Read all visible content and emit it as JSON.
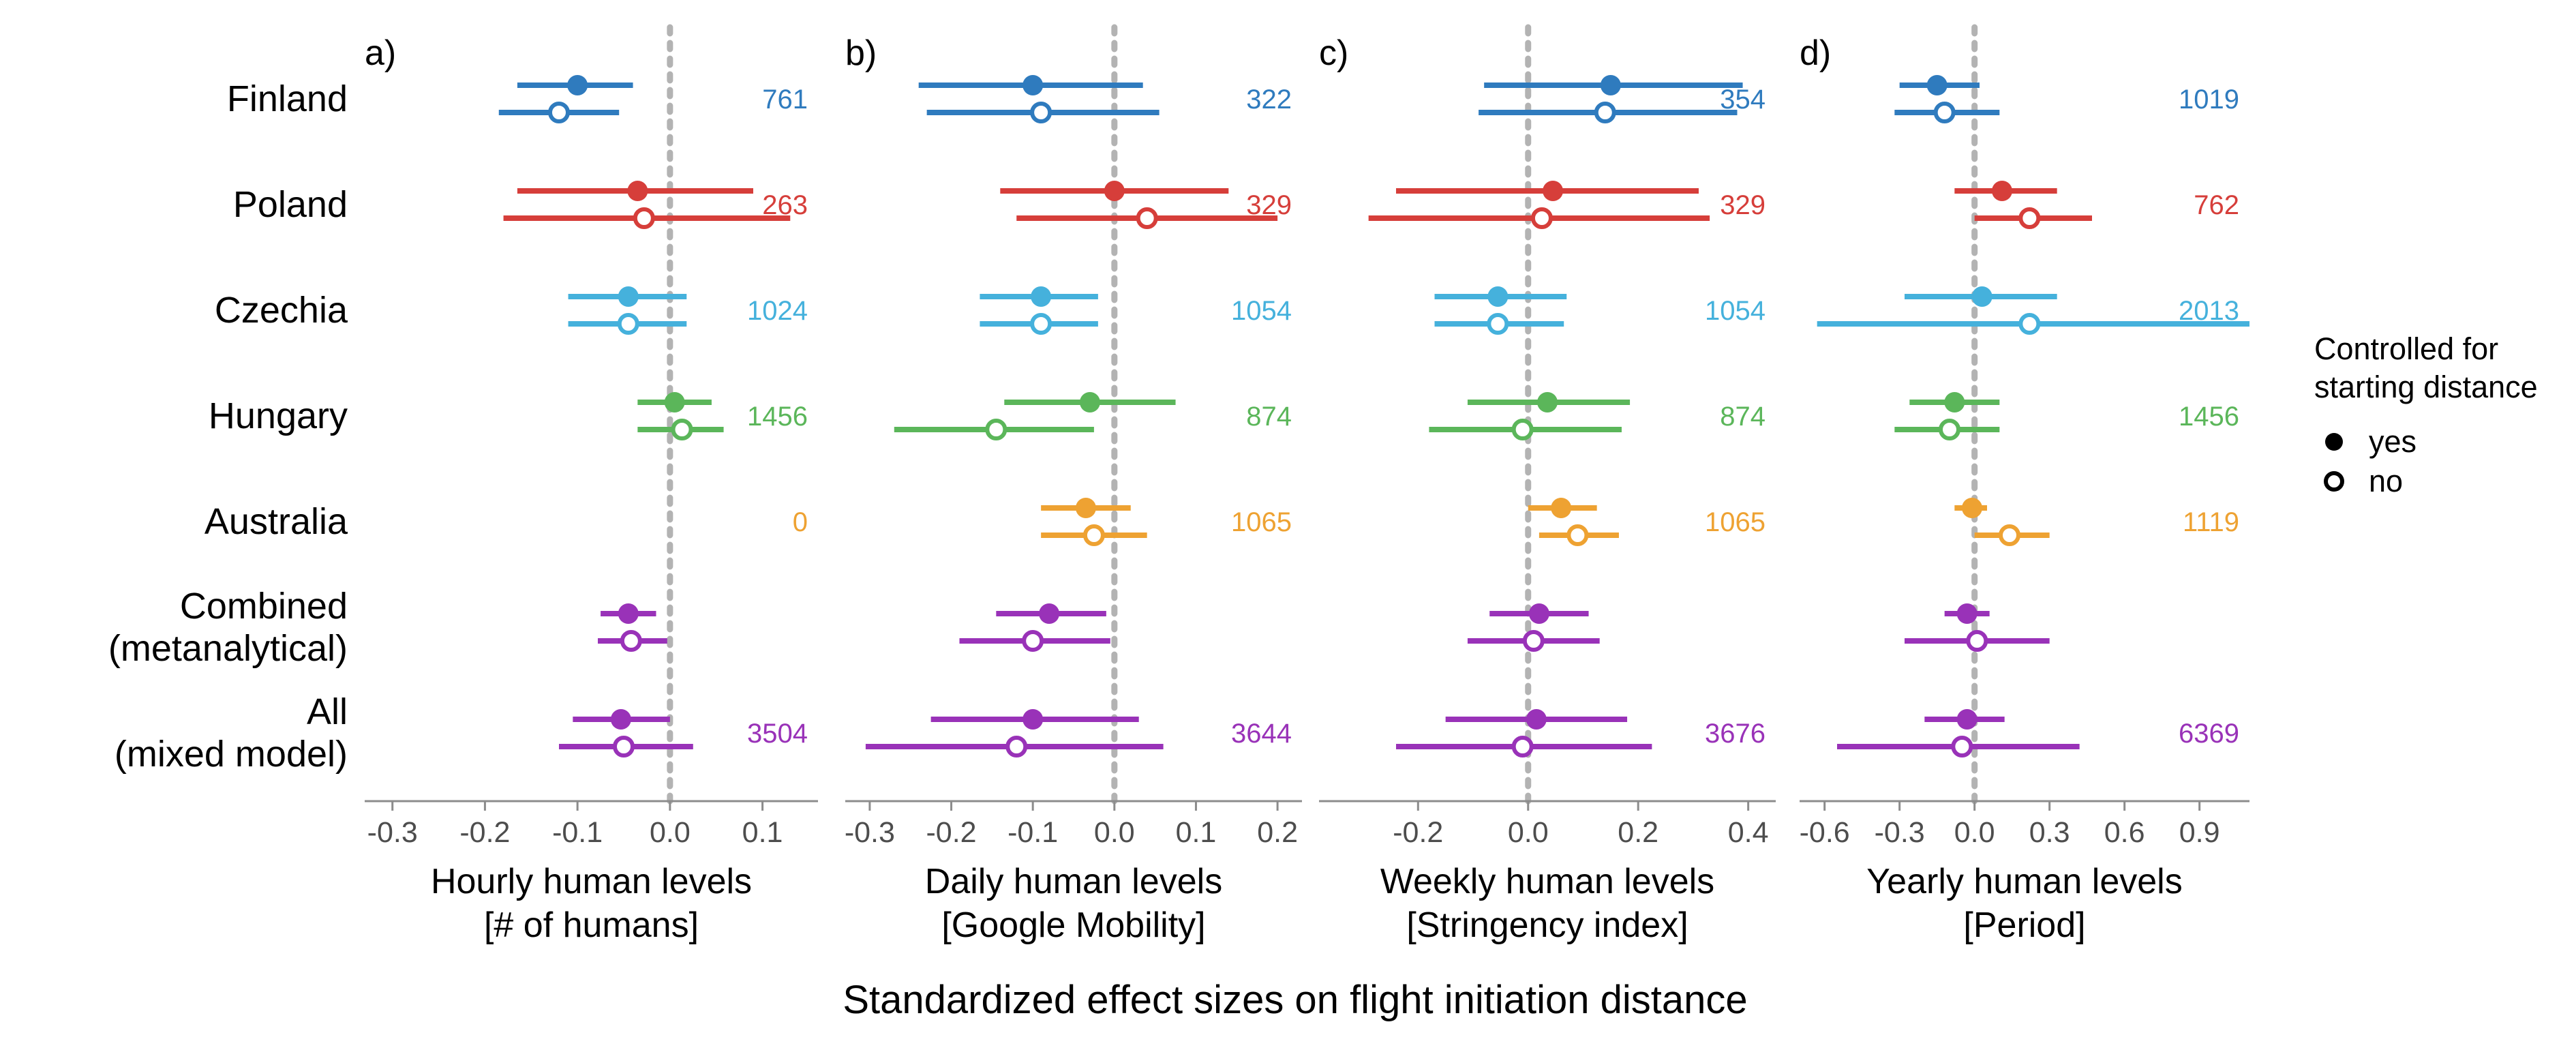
{
  "figure_title": "Standardized effect sizes on flight initiation distance",
  "colors": {
    "Finland": "#2F7BBE",
    "Poland": "#D63E3A",
    "Czechia": "#45B1DC",
    "Hungary": "#5BB65A",
    "Australia": "#EEA232",
    "Combined": "#9932B8",
    "All": "#9932B8",
    "axis": "#8c8c8c",
    "zero_line": "#b3b3b3"
  },
  "row_labels": [
    [
      "Finland"
    ],
    [
      "Poland"
    ],
    [
      "Czechia"
    ],
    [
      "Hungary"
    ],
    [
      "Australia"
    ],
    [
      "Combined",
      "(metanalytical)"
    ],
    [
      "All",
      "(mixed model)"
    ]
  ],
  "legend": {
    "title": [
      "Controlled for",
      "starting distance"
    ],
    "items": [
      {
        "label": "yes",
        "filled": true
      },
      {
        "label": "no",
        "filled": false
      }
    ]
  },
  "chart_data": [
    {
      "type": "forest",
      "panel_tag": "a)",
      "xlabel": [
        "Hourly human levels",
        "[# of humans]"
      ],
      "xlim": [
        -0.33,
        0.16
      ],
      "ticks": [
        -0.3,
        -0.2,
        -0.1,
        0.0,
        0.1
      ],
      "tick_labels": [
        "-0.3",
        "-0.2",
        "-0.1",
        "0.0",
        "0.1"
      ],
      "rows": [
        {
          "group": "Finland",
          "n": "761",
          "yes": [
            -0.1,
            -0.165,
            -0.04
          ],
          "no": [
            -0.12,
            -0.185,
            -0.055
          ]
        },
        {
          "group": "Poland",
          "n": "263",
          "yes": [
            -0.035,
            -0.165,
            0.09
          ],
          "no": [
            -0.028,
            -0.18,
            0.13
          ]
        },
        {
          "group": "Czechia",
          "n": "1024",
          "yes": [
            -0.045,
            -0.11,
            0.018
          ],
          "no": [
            -0.045,
            -0.11,
            0.018
          ]
        },
        {
          "group": "Hungary",
          "n": "1456",
          "yes": [
            0.005,
            -0.035,
            0.045
          ],
          "no": [
            0.013,
            -0.035,
            0.058
          ]
        },
        {
          "group": "Australia",
          "n": "0",
          "yes": null,
          "no": null
        },
        {
          "group": "Combined",
          "n": "",
          "yes": [
            -0.045,
            -0.075,
            -0.015
          ],
          "no": [
            -0.042,
            -0.078,
            -0.003
          ]
        },
        {
          "group": "All",
          "n": "3504",
          "yes": [
            -0.053,
            -0.105,
            0.0
          ],
          "no": [
            -0.05,
            -0.12,
            0.025
          ]
        }
      ]
    },
    {
      "type": "forest",
      "panel_tag": "b)",
      "xlabel": [
        "Daily human levels",
        "[Google Mobility]"
      ],
      "xlim": [
        -0.33,
        0.23
      ],
      "ticks": [
        -0.3,
        -0.2,
        -0.1,
        0.0,
        0.1,
        0.2
      ],
      "tick_labels": [
        "-0.3",
        "-0.2",
        "-0.1",
        "0.0",
        "0.1",
        "0.2"
      ],
      "rows": [
        {
          "group": "Finland",
          "n": "322",
          "yes": [
            -0.1,
            -0.24,
            0.035
          ],
          "no": [
            -0.09,
            -0.23,
            0.055
          ]
        },
        {
          "group": "Poland",
          "n": "329",
          "yes": [
            0.0,
            -0.14,
            0.14
          ],
          "no": [
            0.04,
            -0.12,
            0.2
          ]
        },
        {
          "group": "Czechia",
          "n": "1054",
          "yes": [
            -0.09,
            -0.165,
            -0.02
          ],
          "no": [
            -0.09,
            -0.165,
            -0.02
          ]
        },
        {
          "group": "Hungary",
          "n": "874",
          "yes": [
            -0.03,
            -0.135,
            0.075
          ],
          "no": [
            -0.145,
            -0.27,
            -0.025
          ]
        },
        {
          "group": "Australia",
          "n": "1065",
          "yes": [
            -0.035,
            -0.09,
            0.02
          ],
          "no": [
            -0.025,
            -0.09,
            0.04
          ]
        },
        {
          "group": "Combined",
          "n": "",
          "yes": [
            -0.08,
            -0.145,
            -0.01
          ],
          "no": [
            -0.1,
            -0.19,
            -0.005
          ]
        },
        {
          "group": "All",
          "n": "3644",
          "yes": [
            -0.1,
            -0.225,
            0.03
          ],
          "no": [
            -0.12,
            -0.305,
            0.06
          ]
        }
      ]
    },
    {
      "type": "forest",
      "panel_tag": "c)",
      "xlabel": [
        "Weekly human levels",
        "[Stringency index]"
      ],
      "xlim": [
        -0.38,
        0.45
      ],
      "ticks": [
        -0.2,
        0.0,
        0.2,
        0.4
      ],
      "tick_labels": [
        "-0.2",
        "0.0",
        "0.2",
        "0.4"
      ],
      "rows": [
        {
          "group": "Finland",
          "n": "354",
          "yes": [
            0.15,
            -0.08,
            0.39
          ],
          "no": [
            0.14,
            -0.09,
            0.38
          ]
        },
        {
          "group": "Poland",
          "n": "329",
          "yes": [
            0.045,
            -0.24,
            0.31
          ],
          "no": [
            0.025,
            -0.29,
            0.33
          ]
        },
        {
          "group": "Czechia",
          "n": "1054",
          "yes": [
            -0.055,
            -0.17,
            0.07
          ],
          "no": [
            -0.055,
            -0.17,
            0.065
          ]
        },
        {
          "group": "Hungary",
          "n": "874",
          "yes": [
            0.035,
            -0.11,
            0.185
          ],
          "no": [
            -0.01,
            -0.18,
            0.17
          ]
        },
        {
          "group": "Australia",
          "n": "1065",
          "yes": [
            0.06,
            0.0,
            0.125
          ],
          "no": [
            0.09,
            0.02,
            0.165
          ]
        },
        {
          "group": "Combined",
          "n": "",
          "yes": [
            0.02,
            -0.07,
            0.11
          ],
          "no": [
            0.01,
            -0.11,
            0.13
          ]
        },
        {
          "group": "All",
          "n": "3676",
          "yes": [
            0.015,
            -0.15,
            0.18
          ],
          "no": [
            -0.01,
            -0.24,
            0.225
          ]
        }
      ]
    },
    {
      "type": "forest",
      "panel_tag": "d)",
      "xlabel": [
        "Yearly human levels",
        "[Period]"
      ],
      "xlim": [
        -0.7,
        1.1
      ],
      "ticks": [
        -0.6,
        -0.3,
        0.0,
        0.3,
        0.6,
        0.9
      ],
      "tick_labels": [
        "-0.6",
        "-0.3",
        "0.0",
        "0.3",
        "0.6",
        "0.9"
      ],
      "rows": [
        {
          "group": "Finland",
          "n": "1019",
          "yes": [
            -0.15,
            -0.3,
            0.02
          ],
          "no": [
            -0.12,
            -0.32,
            0.1
          ]
        },
        {
          "group": "Poland",
          "n": "762",
          "yes": [
            0.11,
            -0.08,
            0.33
          ],
          "no": [
            0.22,
            0.0,
            0.47
          ]
        },
        {
          "group": "Czechia",
          "n": "2013",
          "yes": [
            0.03,
            -0.28,
            0.33
          ],
          "no": [
            0.22,
            -0.63,
            1.1
          ]
        },
        {
          "group": "Hungary",
          "n": "1456",
          "yes": [
            -0.08,
            -0.26,
            0.1
          ],
          "no": [
            -0.1,
            -0.32,
            0.1
          ]
        },
        {
          "group": "Australia",
          "n": "1119",
          "yes": [
            -0.01,
            -0.08,
            0.05
          ],
          "no": [
            0.14,
            0.0,
            0.3
          ]
        },
        {
          "group": "Combined",
          "n": "",
          "yes": [
            -0.03,
            -0.12,
            0.06
          ],
          "no": [
            0.01,
            -0.28,
            0.3
          ]
        },
        {
          "group": "All",
          "n": "6369",
          "yes": [
            -0.03,
            -0.2,
            0.12
          ],
          "no": [
            -0.05,
            -0.55,
            0.42
          ]
        }
      ]
    }
  ]
}
